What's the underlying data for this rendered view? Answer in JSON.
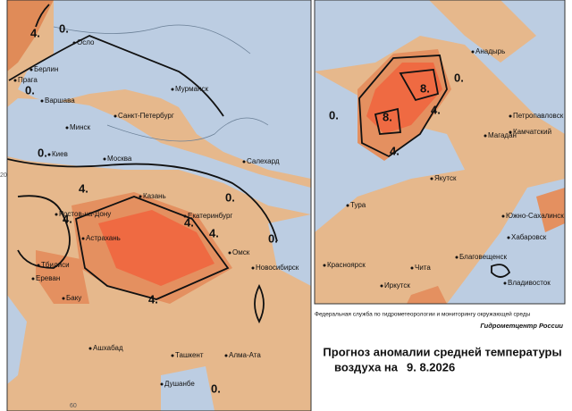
{
  "left_map": {
    "cities": [
      "Осло",
      "Берлин",
      "Прага",
      "Варшава",
      "Мурманск",
      "Санкт-Петербург",
      "Минск",
      "Киев",
      "Москва",
      "Салехард",
      "Казань",
      "Ростов-на-Дону",
      "Екатеринбург",
      "Астрахань",
      "Омск",
      "Тбилиси",
      "Новосибирск",
      "Ереван",
      "Баку",
      "Ашхабад",
      "Ташкент",
      "Алма-Ата",
      "Душанбе"
    ],
    "contour_labels": [
      "4.",
      "0.",
      "0.",
      "0.",
      "4.",
      "4.",
      "4.",
      "4.",
      "4.",
      "0.",
      "0.",
      "0."
    ],
    "grid_labels": [
      "20",
      "60"
    ]
  },
  "right_map": {
    "cities": [
      "Анадырь",
      "Петропавловск",
      "Камчатский",
      "Магадан",
      "Якутск",
      "Тура",
      "Южно-Сахалинск",
      "Хабаровск",
      "Благовещенск",
      "Владивосток",
      "Красноярск",
      "Чита",
      "Иркутск"
    ],
    "contour_labels": [
      "8.",
      "8.",
      "4.",
      "4.",
      "0.",
      "0."
    ]
  },
  "caption": {
    "agency": "Федеральная служба по гидрометеорологии и мониторингу окружающей среды",
    "center": "Гидрометцентр России",
    "title": "Прогноз аномалии средней температуры",
    "subtitle": "воздуха на",
    "date": "9. 8.2026"
  }
}
